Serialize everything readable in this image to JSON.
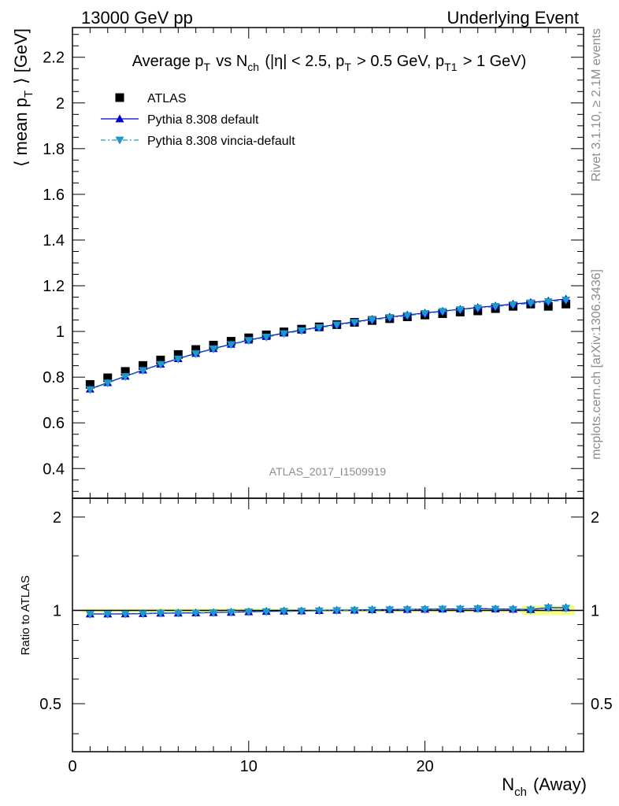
{
  "header": {
    "left": "13000 GeV pp",
    "right": "Underlying Event"
  },
  "side_labels": {
    "rivet": "Rivet 3.1.10, ≥ 2.1M events",
    "mcplots": "mcplots.cern.ch [arXiv:1306.3436]"
  },
  "watermark": "ATLAS_2017_I1509919",
  "chart_data": {
    "type": "scatter",
    "title": "Average p_T vs N_ch (|η| < 2.5, p_T > 0.5 GeV, p_T1 > 1 GeV)",
    "xlabel": "N_ch (Away)",
    "ylabel": "⟨ mean p_T ⟩ [GeV]",
    "ratio_ylabel": "Ratio to ATLAS",
    "xlim": [
      0,
      29
    ],
    "ylim": [
      0.27,
      2.33
    ],
    "ratio_ylim": [
      0.35,
      2.3
    ],
    "ratio_log_scale": true,
    "xticks": [
      0,
      10,
      20
    ],
    "yticks": [
      0.4,
      0.6,
      0.8,
      1,
      1.2,
      1.4,
      1.6,
      1.8,
      2,
      2.2
    ],
    "ratio_yticks": [
      0.5,
      1,
      2
    ],
    "legend_position": "top-left",
    "x": [
      1,
      2,
      3,
      4,
      5,
      6,
      7,
      8,
      9,
      10,
      11,
      12,
      13,
      14,
      15,
      16,
      17,
      18,
      19,
      20,
      21,
      22,
      23,
      24,
      25,
      26,
      27,
      28
    ],
    "series": [
      {
        "name": "ATLAS",
        "color": "#000000",
        "marker": "square",
        "values": [
          0.768,
          0.797,
          0.825,
          0.851,
          0.875,
          0.899,
          0.921,
          0.94,
          0.957,
          0.972,
          0.985,
          0.998,
          1.01,
          1.02,
          1.03,
          1.04,
          1.048,
          1.056,
          1.064,
          1.072,
          1.078,
          1.085,
          1.09,
          1.1,
          1.11,
          1.12,
          1.11,
          1.12
        ]
      },
      {
        "name": "Pythia 8.308 default",
        "color": "#0000cc",
        "marker": "triangle-up",
        "line": "solid",
        "values": [
          0.748,
          0.776,
          0.804,
          0.831,
          0.857,
          0.881,
          0.904,
          0.925,
          0.944,
          0.962,
          0.978,
          0.993,
          1.006,
          1.019,
          1.031,
          1.042,
          1.053,
          1.063,
          1.072,
          1.081,
          1.089,
          1.097,
          1.105,
          1.112,
          1.12,
          1.127,
          1.134,
          1.142
        ]
      },
      {
        "name": "Pythia 8.308 vincia-default",
        "color": "#1b9bc6",
        "marker": "triangle-down",
        "line": "dash-dot",
        "values": [
          0.745,
          0.774,
          0.802,
          0.829,
          0.855,
          0.879,
          0.902,
          0.923,
          0.942,
          0.96,
          0.975,
          0.99,
          1.003,
          1.016,
          1.028,
          1.039,
          1.05,
          1.06,
          1.069,
          1.078,
          1.087,
          1.095,
          1.102,
          1.109,
          1.116,
          1.123,
          1.13,
          1.137
        ]
      }
    ],
    "ratio_band_color": "#f2ff86"
  }
}
